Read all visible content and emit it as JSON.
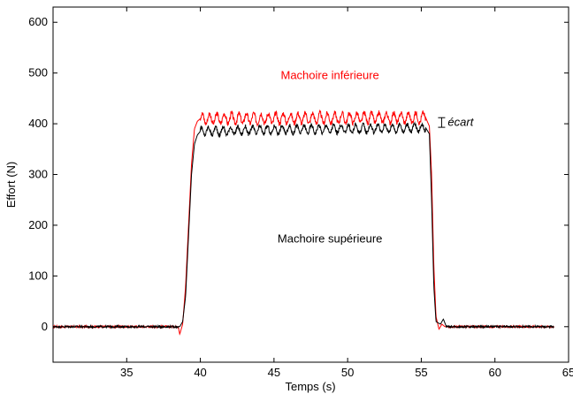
{
  "chart_data": {
    "type": "line",
    "title": "",
    "xlabel": "Temps (s)",
    "ylabel": "Effort (N)",
    "xlim": [
      30,
      65
    ],
    "ylim": [
      -70,
      630
    ],
    "xticks": [
      35,
      40,
      45,
      50,
      55,
      60,
      65
    ],
    "yticks": [
      0,
      100,
      200,
      300,
      400,
      500,
      600
    ],
    "grid": false,
    "series": [
      {
        "name": "Machoire inférieure",
        "color": "#ff0000",
        "plateau_mean": 410,
        "plateau_ripple": 10,
        "points": [
          [
            30,
            0
          ],
          [
            38.5,
            0
          ],
          [
            38.6,
            -15
          ],
          [
            38.8,
            5
          ],
          [
            39.0,
            80
          ],
          [
            39.2,
            200
          ],
          [
            39.4,
            320
          ],
          [
            39.6,
            390
          ],
          [
            39.8,
            405
          ],
          [
            40.0,
            410
          ],
          [
            55.3,
            412
          ],
          [
            55.55,
            395
          ],
          [
            55.7,
            300
          ],
          [
            55.85,
            120
          ],
          [
            56.0,
            20
          ],
          [
            56.2,
            -5
          ],
          [
            56.4,
            5
          ],
          [
            56.6,
            0
          ],
          [
            64,
            0
          ]
        ]
      },
      {
        "name": "Machoire supérieure",
        "color": "#000000",
        "plateau_mean": 390,
        "plateau_ripple": 8,
        "points": [
          [
            30,
            0
          ],
          [
            38.6,
            0
          ],
          [
            38.8,
            10
          ],
          [
            39.0,
            60
          ],
          [
            39.2,
            180
          ],
          [
            39.4,
            300
          ],
          [
            39.6,
            360
          ],
          [
            39.8,
            378
          ],
          [
            40.0,
            385
          ],
          [
            45.0,
            388
          ],
          [
            50.0,
            390
          ],
          [
            55.3,
            392
          ],
          [
            55.55,
            380
          ],
          [
            55.7,
            250
          ],
          [
            55.85,
            80
          ],
          [
            56.0,
            10
          ],
          [
            56.3,
            5
          ],
          [
            56.5,
            15
          ],
          [
            56.7,
            0
          ],
          [
            64,
            0
          ]
        ]
      }
    ],
    "annotations": [
      {
        "text": "Machoire inférieure",
        "color": "#ff0000",
        "x": 48.8,
        "y": 488
      },
      {
        "text": "Machoire supérieure",
        "color": "#000000",
        "x": 48.8,
        "y": 166
      },
      {
        "text": "écart",
        "color": "#000000",
        "x": 57.6,
        "y": 403,
        "italic": true,
        "bracket": [
          393,
          412
        ]
      }
    ]
  }
}
